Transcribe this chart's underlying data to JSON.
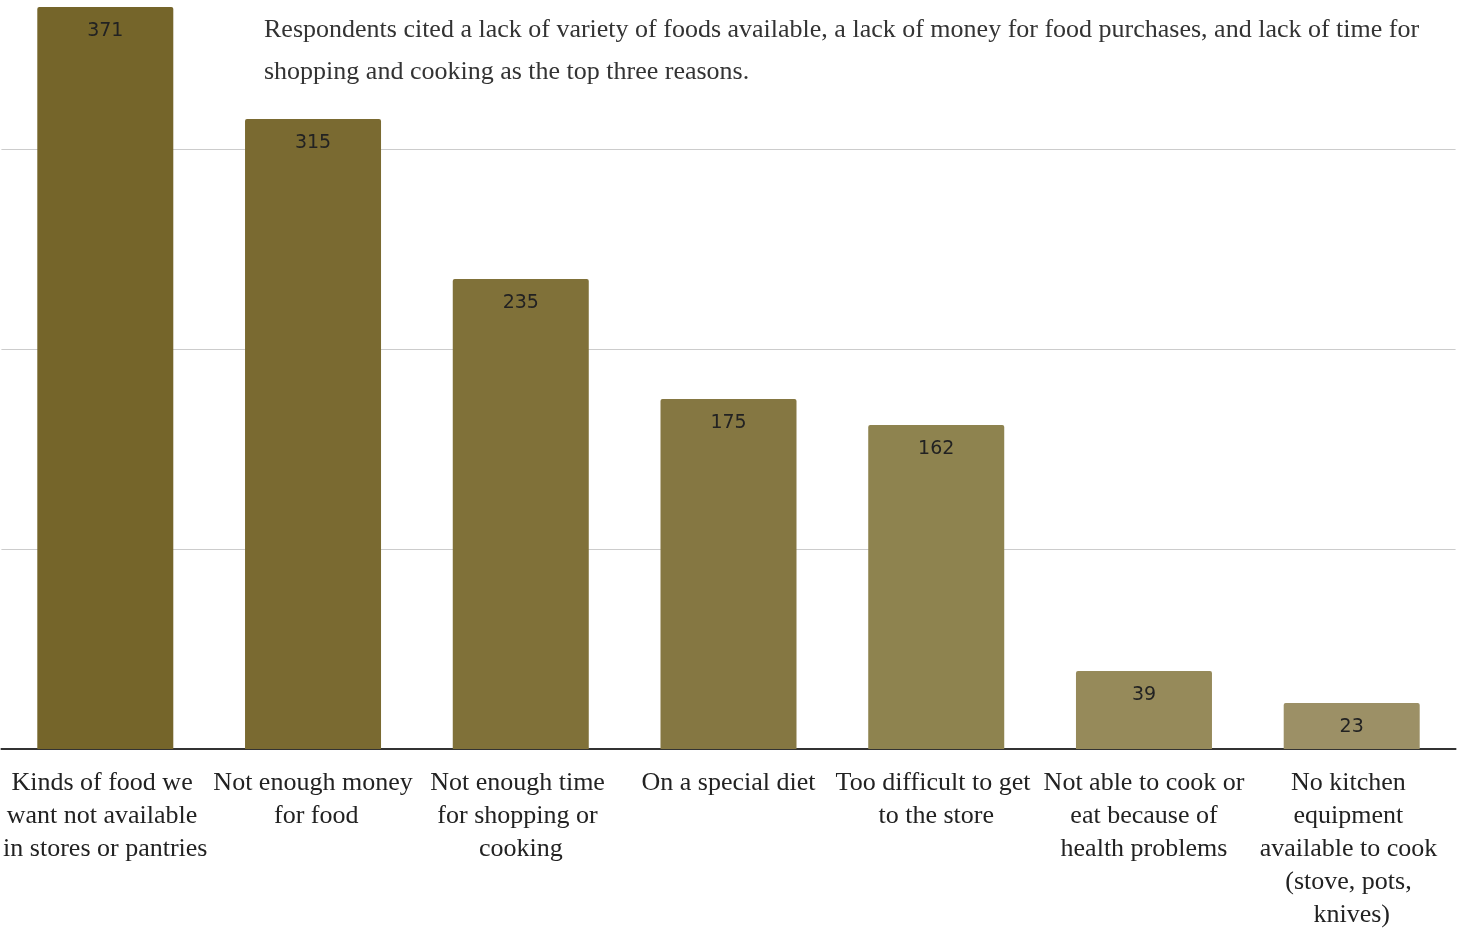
{
  "chart_data": {
    "type": "bar",
    "title": "Respondents cited a lack of variety of foods available, a lack of money for food purchases, and lack of time for shopping and cooking as the top three reasons.",
    "categories": [
      "Kinds of food we want not available in stores or pantries",
      "Not enough money for food",
      "Not enough time for shopping or cooking",
      "On a special diet",
      "Too difficult to get to the store",
      "Not able to cook or eat because of health problems",
      "No kitchen equipment available to cook (stove, pots, knives)"
    ],
    "values": [
      371,
      315,
      235,
      175,
      162,
      39,
      23
    ],
    "colors": [
      "#75652a",
      "#7a6a31",
      "#807139",
      "#857742",
      "#8e834f",
      "#968a5a",
      "#9c9066"
    ],
    "ylim": [
      0,
      371
    ],
    "yticks": [
      {
        "value": 0,
        "label": null
      },
      {
        "value": 100,
        "label": null
      },
      {
        "value": 200,
        "label": null
      },
      {
        "value": 300,
        "label": null
      }
    ],
    "grid": "y",
    "tick_labels": "x",
    "data_labels": true
  }
}
